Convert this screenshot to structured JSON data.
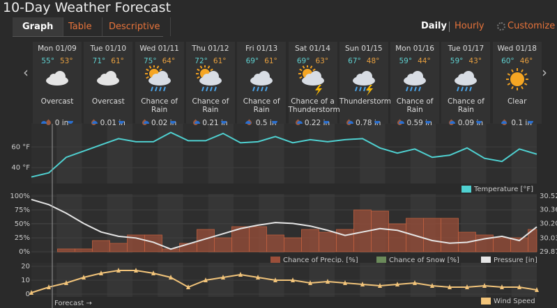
{
  "header": {
    "title": "10-Day Weather Forecast"
  },
  "tabs": [
    "Graph",
    "Table",
    "Descriptive"
  ],
  "view_toggle": [
    "Daily",
    "Hourly"
  ],
  "customize": "Customize",
  "days": [
    {
      "date": "Mon 01/09",
      "high": "55°",
      "low": "53°",
      "condition": "Overcast",
      "precip": "0 in"
    },
    {
      "date": "Tue 01/10",
      "high": "71°",
      "low": "61°",
      "condition": "Overcast",
      "precip": "0.01 in"
    },
    {
      "date": "Wed 01/11",
      "high": "75°",
      "low": "64°",
      "condition": "Chance of Rain",
      "precip": "0.02 in"
    },
    {
      "date": "Thu 01/12",
      "high": "72°",
      "low": "61°",
      "condition": "Chance of Rain",
      "precip": "0.21 in"
    },
    {
      "date": "Fri 01/13",
      "high": "69°",
      "low": "61°",
      "condition": "Chance of Rain",
      "precip": "0.5 in"
    },
    {
      "date": "Sat 01/14",
      "high": "69°",
      "low": "63°",
      "condition": "Chance of a Thunderstorm",
      "precip": "0.22 in"
    },
    {
      "date": "Sun 01/15",
      "high": "67°",
      "low": "48°",
      "condition": "Thunderstorm",
      "precip": "0.78 in"
    },
    {
      "date": "Mon 01/16",
      "high": "59°",
      "low": "44°",
      "condition": "Chance of Rain",
      "precip": "0.59 in"
    },
    {
      "date": "Tue 01/17",
      "high": "59°",
      "low": "43°",
      "condition": "Chance of Rain",
      "precip": "0.09 in"
    },
    {
      "date": "Wed 01/18",
      "high": "60°",
      "low": "46°",
      "condition": "Clear",
      "precip": "0.1 in"
    }
  ],
  "forecast_marker": "Forecast →",
  "chart_data": [
    {
      "type": "line",
      "ylim": [
        26,
        81
      ],
      "yticks": [
        {
          "value": 40,
          "label": "40 °F"
        },
        {
          "value": 60,
          "label": "60 °F"
        }
      ],
      "series": [
        {
          "name": "Temperature [°F]",
          "color": "#4fd1d1",
          "values": [
            31,
            35,
            50,
            56,
            62,
            68,
            65,
            65,
            74,
            66,
            66,
            73,
            64,
            65,
            70,
            64,
            67,
            65,
            67,
            68,
            59,
            54,
            58,
            50,
            52,
            59,
            49,
            46,
            58,
            53
          ]
        }
      ]
    },
    {
      "type": "bar",
      "ylim": [
        0,
        100
      ],
      "yticks": [
        {
          "value": 0,
          "label": "0%"
        },
        {
          "value": 25,
          "label": "25%"
        },
        {
          "value": 50,
          "label": "50%"
        },
        {
          "value": 75,
          "label": "75%"
        },
        {
          "value": 100,
          "label": "100%"
        }
      ],
      "y2lim": [
        29.87,
        30.52
      ],
      "y2ticks": [
        29.87,
        30.03,
        {
          "value": 30.2,
          "label": "30.20"
        },
        30.36,
        30.52
      ],
      "series": [
        {
          "name": "Chance of Precip. [%]",
          "color": "#9b4f3a",
          "values": [
            0,
            0,
            5,
            5,
            20,
            15,
            30,
            30,
            5,
            15,
            40,
            25,
            45,
            45,
            30,
            25,
            40,
            35,
            40,
            75,
            73,
            50,
            60,
            60,
            60,
            35,
            30,
            25,
            25,
            40
          ]
        },
        {
          "name": "Chance of Snow [%]",
          "color": "#6b8a5a",
          "values": [
            0,
            0,
            0,
            0,
            0,
            0,
            0,
            0,
            0,
            0,
            0,
            0,
            0,
            0,
            0,
            0,
            0,
            0,
            0,
            0,
            0,
            0,
            0,
            0,
            0,
            0,
            0,
            0,
            0,
            0
          ]
        },
        {
          "name": "Pressure [in]",
          "color": "#e6e6e6",
          "axis": "y2",
          "values": [
            30.48,
            30.42,
            30.32,
            30.2,
            30.1,
            30.05,
            30.03,
            29.98,
            29.9,
            29.96,
            30.02,
            30.08,
            30.14,
            30.18,
            30.21,
            30.2,
            30.17,
            30.12,
            30.06,
            30.1,
            30.14,
            30.12,
            30.06,
            30,
            29.97,
            29.98,
            30.02,
            30.05,
            30,
            30.16
          ]
        }
      ]
    },
    {
      "type": "line",
      "ylim": [
        0,
        20
      ],
      "yticks": [
        0,
        10,
        20
      ],
      "series": [
        {
          "name": "Wind Speed",
          "color": "#f2c47a",
          "values": [
            1,
            5,
            8,
            12,
            15,
            17,
            17,
            15,
            12,
            5,
            10,
            12,
            14,
            12,
            10,
            10,
            8,
            9,
            8,
            7,
            6,
            7,
            8,
            6,
            5,
            5,
            6,
            5,
            5,
            3
          ]
        }
      ]
    }
  ]
}
